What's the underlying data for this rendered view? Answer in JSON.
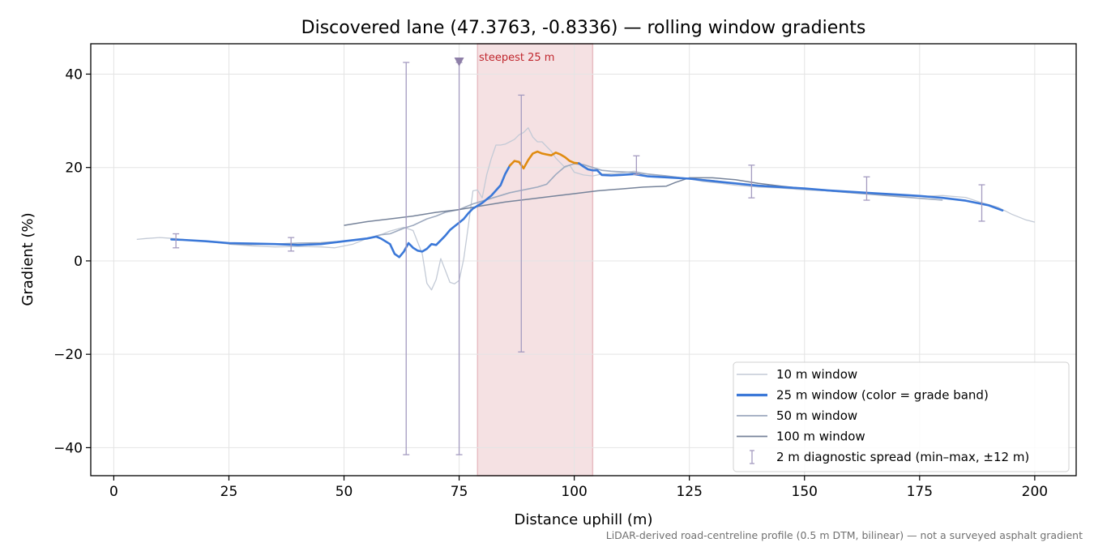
{
  "chart_data": {
    "type": "line",
    "title": "Discovered lane (47.3763, -0.8336) — rolling window gradients",
    "xlabel": "Distance uphill (m)",
    "ylabel": "Gradient (%)",
    "xlim": [
      -5,
      209
    ],
    "ylim": [
      -46,
      46.5
    ],
    "xticks": [
      0,
      25,
      50,
      75,
      100,
      125,
      150,
      175,
      200
    ],
    "yticks": [
      -40,
      -20,
      0,
      20,
      40
    ],
    "xtick_labels": [
      "0",
      "25",
      "50",
      "75",
      "100",
      "125",
      "150",
      "175",
      "200"
    ],
    "ytick_labels": [
      "−40",
      "−20",
      "0",
      "20",
      "40"
    ],
    "grid": true,
    "legend_position": "lower right",
    "footnote": "LiDAR-derived road-centreline profile (0.5 m DTM, bilinear) — not a surveyed asphalt gradient",
    "highlight": {
      "x_start": 79,
      "x_end": 104,
      "label": "steepest 25 m",
      "color": "#e8bcc2",
      "label_color": "#c0262d"
    },
    "marker": {
      "x": 75,
      "y": 42.5,
      "shape": "triangle-down",
      "color": "#8e7fa8"
    },
    "series": [
      {
        "name": "10 m window",
        "color": "#c3cad6",
        "width": 1.3,
        "points": [
          [
            5,
            4.6
          ],
          [
            7,
            4.8
          ],
          [
            10,
            5.0
          ],
          [
            13,
            4.8
          ],
          [
            16,
            4.5
          ],
          [
            20,
            4.2
          ],
          [
            25,
            3.6
          ],
          [
            30,
            3.2
          ],
          [
            35,
            3.0
          ],
          [
            40,
            3.1
          ],
          [
            45,
            3.0
          ],
          [
            48,
            2.8
          ],
          [
            50,
            3.2
          ],
          [
            52,
            3.6
          ],
          [
            55,
            4.8
          ],
          [
            58,
            5.6
          ],
          [
            60,
            6.4
          ],
          [
            63,
            7.2
          ],
          [
            65,
            6.5
          ],
          [
            67,
            1.5
          ],
          [
            68,
            -4.8
          ],
          [
            69,
            -6.2
          ],
          [
            70,
            -4.0
          ],
          [
            71,
            0.5
          ],
          [
            72,
            -2.0
          ],
          [
            73,
            -4.6
          ],
          [
            74,
            -4.9
          ],
          [
            75,
            -4.2
          ],
          [
            76,
            0.5
          ],
          [
            77,
            7.5
          ],
          [
            78,
            15.0
          ],
          [
            79,
            15.2
          ],
          [
            80,
            13.5
          ],
          [
            81,
            18.5
          ],
          [
            82,
            22.0
          ],
          [
            83,
            24.8
          ],
          [
            84,
            24.8
          ],
          [
            85,
            25.0
          ],
          [
            86,
            25.5
          ],
          [
            87,
            26.0
          ],
          [
            88,
            27.0
          ],
          [
            89,
            27.5
          ],
          [
            90,
            28.5
          ],
          [
            91,
            26.5
          ],
          [
            92,
            25.5
          ],
          [
            93,
            25.5
          ],
          [
            94,
            24.5
          ],
          [
            95,
            23.5
          ],
          [
            96,
            22.0
          ],
          [
            97,
            21.0
          ],
          [
            98,
            20.0
          ],
          [
            99,
            20.5
          ],
          [
            100,
            19.0
          ],
          [
            102,
            18.4
          ],
          [
            104,
            18.2
          ],
          [
            106,
            18.6
          ],
          [
            110,
            18.8
          ],
          [
            113,
            19.2
          ],
          [
            116,
            18.6
          ],
          [
            120,
            18.2
          ],
          [
            125,
            17.6
          ],
          [
            128,
            17.0
          ],
          [
            132,
            16.6
          ],
          [
            135,
            16.2
          ],
          [
            140,
            15.8
          ],
          [
            145,
            15.6
          ],
          [
            150,
            15.2
          ],
          [
            155,
            15.0
          ],
          [
            160,
            14.6
          ],
          [
            165,
            14.3
          ],
          [
            170,
            14.0
          ],
          [
            175,
            13.8
          ],
          [
            180,
            14.0
          ],
          [
            185,
            13.6
          ],
          [
            188,
            12.6
          ],
          [
            192,
            11.5
          ],
          [
            195,
            10.0
          ],
          [
            198,
            8.8
          ],
          [
            200,
            8.3
          ]
        ]
      },
      {
        "name": "25 m window (color = grade band)",
        "color": "#3b78d8",
        "band_color": "#e08b10",
        "band_range": [
          86,
          101
        ],
        "width": 2.6,
        "points": [
          [
            12.5,
            4.6
          ],
          [
            15,
            4.5
          ],
          [
            20,
            4.2
          ],
          [
            25,
            3.8
          ],
          [
            30,
            3.7
          ],
          [
            35,
            3.6
          ],
          [
            40,
            3.4
          ],
          [
            45,
            3.6
          ],
          [
            50,
            4.2
          ],
          [
            55,
            4.8
          ],
          [
            57,
            5.2
          ],
          [
            58,
            4.8
          ],
          [
            60,
            3.6
          ],
          [
            61,
            1.5
          ],
          [
            62,
            0.8
          ],
          [
            63,
            2.0
          ],
          [
            64,
            3.8
          ],
          [
            65,
            2.8
          ],
          [
            66,
            2.2
          ],
          [
            67,
            2.0
          ],
          [
            68,
            2.6
          ],
          [
            69,
            3.6
          ],
          [
            70,
            3.4
          ],
          [
            71,
            4.4
          ],
          [
            72,
            5.4
          ],
          [
            73,
            6.6
          ],
          [
            74,
            7.4
          ],
          [
            75,
            8.2
          ],
          [
            76,
            9.0
          ],
          [
            77,
            10.2
          ],
          [
            78,
            11.2
          ],
          [
            79,
            11.8
          ],
          [
            80,
            12.4
          ],
          [
            82,
            14.0
          ],
          [
            84,
            16.2
          ],
          [
            85,
            18.6
          ],
          [
            86,
            20.4
          ],
          [
            87,
            21.4
          ],
          [
            88,
            21.2
          ],
          [
            89,
            19.8
          ],
          [
            90,
            21.6
          ],
          [
            91,
            23.0
          ],
          [
            92,
            23.4
          ],
          [
            93,
            23.0
          ],
          [
            94,
            22.8
          ],
          [
            95,
            22.6
          ],
          [
            96,
            23.2
          ],
          [
            97,
            22.8
          ],
          [
            98,
            22.2
          ],
          [
            99,
            21.4
          ],
          [
            100,
            21.0
          ],
          [
            101,
            20.9
          ],
          [
            102,
            20.2
          ],
          [
            103,
            19.6
          ],
          [
            104,
            19.4
          ],
          [
            105,
            19.4
          ],
          [
            106,
            18.4
          ],
          [
            108,
            18.3
          ],
          [
            110,
            18.4
          ],
          [
            113,
            18.6
          ],
          [
            116,
            18.1
          ],
          [
            120,
            17.9
          ],
          [
            125,
            17.6
          ],
          [
            130,
            17.1
          ],
          [
            135,
            16.6
          ],
          [
            140,
            16.1
          ],
          [
            145,
            15.8
          ],
          [
            150,
            15.5
          ],
          [
            155,
            15.1
          ],
          [
            160,
            14.8
          ],
          [
            165,
            14.5
          ],
          [
            170,
            14.2
          ],
          [
            175,
            13.9
          ],
          [
            180,
            13.5
          ],
          [
            185,
            12.9
          ],
          [
            190,
            11.9
          ],
          [
            193,
            10.8
          ]
        ]
      },
      {
        "name": "50 m window",
        "color": "#9eaabf",
        "width": 1.6,
        "points": [
          [
            25,
            3.6
          ],
          [
            30,
            3.5
          ],
          [
            35,
            3.6
          ],
          [
            40,
            3.8
          ],
          [
            45,
            3.9
          ],
          [
            50,
            4.2
          ],
          [
            55,
            4.8
          ],
          [
            58,
            5.6
          ],
          [
            60,
            5.8
          ],
          [
            63,
            7.0
          ],
          [
            65,
            7.6
          ],
          [
            68,
            9.0
          ],
          [
            70,
            9.6
          ],
          [
            72,
            10.4
          ],
          [
            75,
            11.0
          ],
          [
            78,
            12.2
          ],
          [
            80,
            12.8
          ],
          [
            82,
            13.4
          ],
          [
            84,
            14.0
          ],
          [
            86,
            14.6
          ],
          [
            88,
            15.0
          ],
          [
            90,
            15.4
          ],
          [
            92,
            15.8
          ],
          [
            94,
            16.4
          ],
          [
            96,
            18.5
          ],
          [
            98,
            20.2
          ],
          [
            100,
            20.8
          ],
          [
            102,
            20.6
          ],
          [
            104,
            20.0
          ],
          [
            106,
            19.4
          ],
          [
            108,
            19.2
          ],
          [
            112,
            19.0
          ],
          [
            116,
            18.6
          ],
          [
            120,
            18.2
          ],
          [
            125,
            17.6
          ],
          [
            130,
            17.2
          ],
          [
            135,
            16.6
          ],
          [
            140,
            16.2
          ],
          [
            145,
            15.8
          ],
          [
            150,
            15.4
          ],
          [
            155,
            15.0
          ],
          [
            160,
            14.6
          ],
          [
            165,
            14.2
          ],
          [
            170,
            13.8
          ],
          [
            175,
            13.4
          ],
          [
            180,
            13.0
          ]
        ]
      },
      {
        "name": "100 m window",
        "color": "#76839a",
        "width": 1.5,
        "points": [
          [
            50,
            7.6
          ],
          [
            55,
            8.4
          ],
          [
            60,
            9.0
          ],
          [
            65,
            9.6
          ],
          [
            70,
            10.4
          ],
          [
            75,
            11.0
          ],
          [
            80,
            11.8
          ],
          [
            85,
            12.6
          ],
          [
            90,
            13.2
          ],
          [
            95,
            13.8
          ],
          [
            100,
            14.4
          ],
          [
            105,
            15.0
          ],
          [
            110,
            15.4
          ],
          [
            115,
            15.8
          ],
          [
            120,
            16.0
          ],
          [
            122,
            16.8
          ],
          [
            125,
            17.8
          ],
          [
            130,
            17.8
          ],
          [
            135,
            17.4
          ],
          [
            140,
            16.6
          ],
          [
            145,
            16.0
          ],
          [
            150,
            15.5
          ]
        ]
      }
    ],
    "errorbars": {
      "name": "2 m diagnostic spread (min–max, ±12 m)",
      "color": "#a49bc0",
      "points": [
        {
          "x": 13.5,
          "low": 2.8,
          "high": 5.8
        },
        {
          "x": 38.5,
          "low": 2.1,
          "high": 5.0
        },
        {
          "x": 63.5,
          "low": -41.5,
          "high": 42.5
        },
        {
          "x": 75,
          "low": -41.5,
          "high": 42.5
        },
        {
          "x": 88.5,
          "low": -19.5,
          "high": 35.5
        },
        {
          "x": 113.5,
          "low": 18.5,
          "high": 22.5
        },
        {
          "x": 138.5,
          "low": 13.5,
          "high": 20.5
        },
        {
          "x": 163.5,
          "low": 13.0,
          "high": 18.0
        },
        {
          "x": 188.5,
          "low": 8.5,
          "high": 16.3
        }
      ]
    }
  }
}
